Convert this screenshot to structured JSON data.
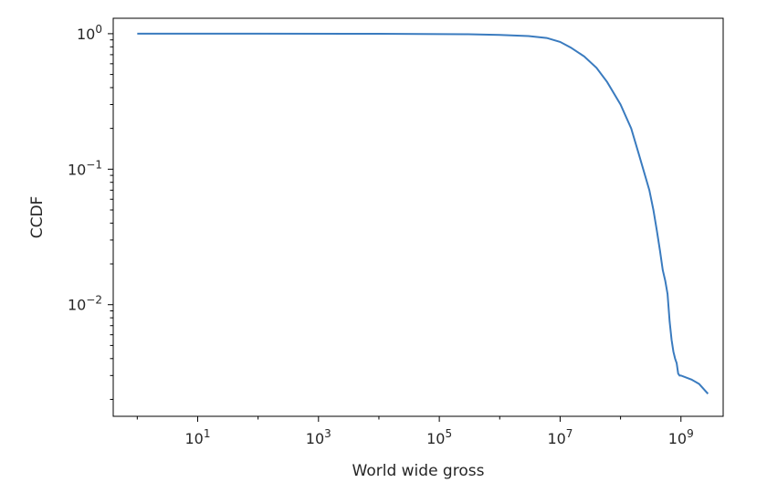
{
  "chart_data": {
    "type": "line",
    "title": "",
    "xlabel": "World wide gross",
    "ylabel": "CCDF",
    "x_scale": "log",
    "y_scale": "log",
    "xlim": [
      0.4,
      5000000000
    ],
    "ylim": [
      0.0015,
      1.3
    ],
    "grid": false,
    "legend": "none",
    "line_color": "#3a7bbf",
    "x_ticks": [
      {
        "value": 10,
        "base": "10",
        "exp": "1"
      },
      {
        "value": 1000,
        "base": "10",
        "exp": "3"
      },
      {
        "value": 100000,
        "base": "10",
        "exp": "5"
      },
      {
        "value": 10000000,
        "base": "10",
        "exp": "7"
      },
      {
        "value": 1000000000,
        "base": "10",
        "exp": "9"
      }
    ],
    "y_ticks": [
      {
        "value": 1,
        "base": "10",
        "exp": "0"
      },
      {
        "value": 0.1,
        "base": "10",
        "exp": "−1"
      },
      {
        "value": 0.01,
        "base": "10",
        "exp": "−2"
      }
    ],
    "series": [
      {
        "x": [
          1,
          100,
          10000,
          300000,
          1000000,
          3000000,
          6000000,
          10000000,
          15000000,
          25000000,
          40000000,
          60000000,
          100000000,
          150000000,
          200000000,
          300000000,
          350000000,
          400000000,
          450000000,
          500000000,
          550000000,
          600000000,
          650000000,
          700000000,
          750000000,
          800000000,
          850000000,
          900000000,
          950000000,
          1000000000,
          1500000000,
          2000000000,
          2800000000
        ],
        "y": [
          1.0,
          1.0,
          0.999,
          0.99,
          0.98,
          0.96,
          0.93,
          0.87,
          0.79,
          0.68,
          0.56,
          0.44,
          0.3,
          0.2,
          0.13,
          0.07,
          0.05,
          0.035,
          0.025,
          0.018,
          0.015,
          0.012,
          0.0075,
          0.0055,
          0.0045,
          0.004,
          0.0037,
          0.0031,
          0.003,
          0.003,
          0.0028,
          0.0026,
          0.0022
        ]
      }
    ]
  }
}
